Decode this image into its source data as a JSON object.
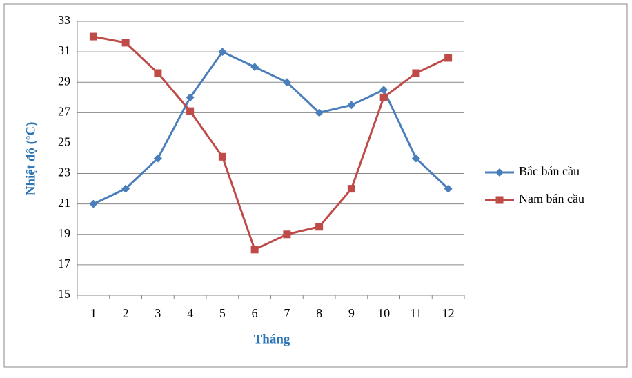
{
  "chart_data": {
    "type": "line",
    "x_label": "Tháng",
    "y_label": "Nhiệt độ (ºC)",
    "categories": [
      "1",
      "2",
      "3",
      "4",
      "5",
      "6",
      "7",
      "8",
      "9",
      "10",
      "11",
      "12"
    ],
    "series": [
      {
        "name": "Bắc bán cầu",
        "color": "#4a7ebb",
        "marker": "diamond",
        "values": [
          21,
          22,
          24,
          28,
          31,
          30,
          29,
          27,
          27.5,
          28.5,
          24,
          22
        ]
      },
      {
        "name": "Nam bán cầu",
        "color": "#be4b48",
        "marker": "square",
        "values": [
          32,
          31.6,
          29.6,
          27.1,
          24.1,
          18,
          19,
          19.5,
          22,
          28,
          29.6,
          30.6
        ]
      }
    ],
    "ylim": [
      15,
      33
    ],
    "yticks": [
      15,
      17,
      19,
      21,
      23,
      25,
      27,
      29,
      31,
      33
    ],
    "grid": true,
    "legend": "right"
  }
}
